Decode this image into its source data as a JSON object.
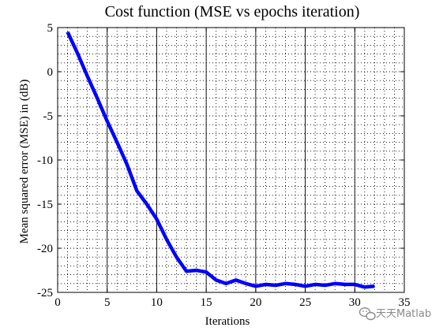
{
  "chart_data": {
    "type": "line",
    "title": "Cost function (MSE vs epochs iteration)",
    "xlabel": "Iterations",
    "ylabel": "Mean squared error (MSE) in (dB)",
    "xlim": [
      0,
      35
    ],
    "ylim": [
      -25,
      5
    ],
    "xticks": [
      0,
      5,
      10,
      15,
      20,
      25,
      30,
      35
    ],
    "yticks": [
      5,
      0,
      -5,
      -10,
      -15,
      -20,
      -25
    ],
    "grid": "dotted",
    "series_color": "#0000ff",
    "series": [
      {
        "x": [
          1,
          2,
          3,
          4,
          5,
          6,
          7,
          8,
          9,
          10,
          11,
          12,
          13,
          14,
          15,
          16,
          17,
          18,
          19,
          20,
          21,
          22,
          23,
          24,
          25,
          26,
          27,
          28,
          29,
          30,
          31,
          32
        ],
        "y": [
          4.5,
          2.1,
          -0.5,
          -3.0,
          -5.6,
          -8.0,
          -10.5,
          -13.5,
          -15.0,
          -16.7,
          -19.0,
          -21.0,
          -22.6,
          -22.5,
          -22.7,
          -23.6,
          -24.0,
          -23.6,
          -24.0,
          -24.3,
          -24.1,
          -24.2,
          -24.0,
          -24.1,
          -24.3,
          -24.1,
          -24.2,
          -24.0,
          -24.1,
          -24.1,
          -24.4,
          -24.3
        ]
      }
    ]
  },
  "watermark": {
    "text": "天天Matlab",
    "icon": "wechat-logo-icon"
  }
}
